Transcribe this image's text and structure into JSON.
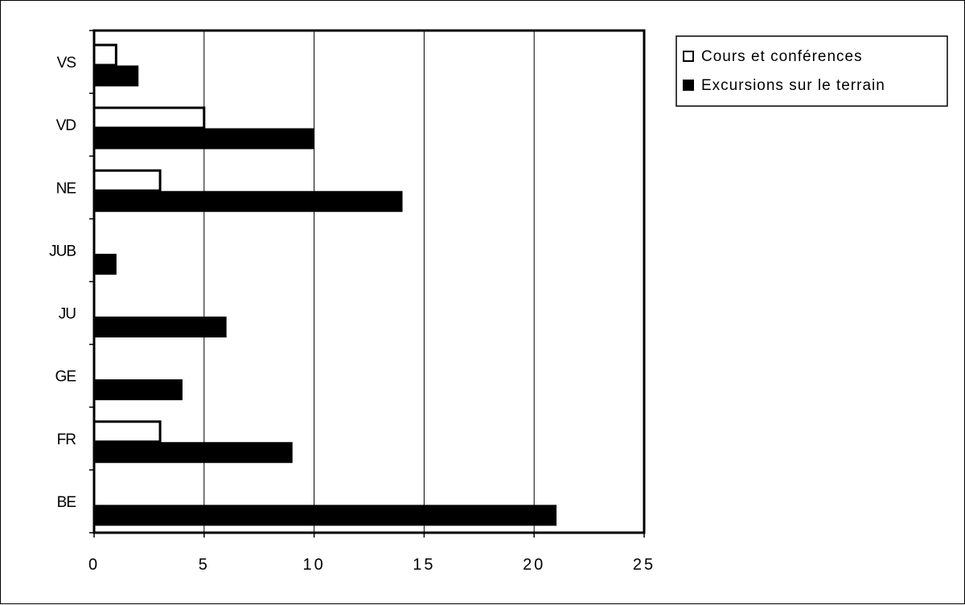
{
  "chart_data": {
    "type": "bar",
    "orientation": "horizontal",
    "categories": [
      "VS",
      "VD",
      "NE",
      "JUB",
      "JU",
      "GE",
      "FR",
      "BE"
    ],
    "series": [
      {
        "name": "Cours et conférences",
        "values": [
          1,
          5,
          3,
          0,
          0,
          0,
          3,
          0
        ],
        "color": "#ffffff"
      },
      {
        "name": "Excursions sur le terrain",
        "values": [
          2,
          10,
          14,
          1,
          6,
          4,
          9,
          21
        ],
        "color": "#000000"
      }
    ],
    "xlim": [
      0,
      25
    ],
    "xticks": [
      "0",
      "5",
      "10",
      "15",
      "20",
      "25"
    ],
    "grid": "vertical",
    "legend_position": "top-right"
  }
}
